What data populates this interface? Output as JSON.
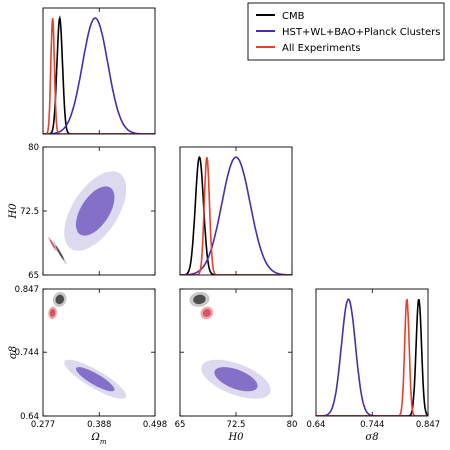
{
  "chart_data": {
    "type": "corner-triangle",
    "parameters": [
      {
        "key": "om",
        "label": "Ω_m",
        "range": [
          0.277,
          0.498
        ],
        "ticks": [
          "0.277",
          "0.388",
          "0.498"
        ]
      },
      {
        "key": "h0",
        "label": "H0",
        "range": [
          65,
          80
        ],
        "ticks": [
          "65",
          "72.5",
          "80"
        ]
      },
      {
        "key": "s8",
        "label": "σ8",
        "range": [
          0.64,
          0.847
        ],
        "ticks": [
          "0.64",
          "0.744",
          "0.847"
        ]
      }
    ],
    "axis_labels": {
      "om": {
        "base": "Ω",
        "sub": "m"
      },
      "h0": {
        "base": "H0"
      },
      "s8": {
        "base": "σ8"
      }
    },
    "legend": {
      "placement": "top-right",
      "entries": [
        "CMB",
        "HST+WL+BAO+Planck Clusters",
        "All Experiments"
      ]
    },
    "series": [
      {
        "name": "CMB",
        "color": "#000000",
        "mean": {
          "om": 0.31,
          "h0": 67.6,
          "s8": 0.83
        },
        "sd": {
          "om": 0.0055,
          "h0": 0.55,
          "s8": 0.005
        },
        "contour_inner": "#4d4d4d",
        "contour_outer": "#c8c8c8"
      },
      {
        "name": "HST+WL+BAO+Planck Clusters",
        "color": "#4a2bb3",
        "mean": {
          "om": 0.38,
          "h0": 72.5,
          "s8": 0.7
        },
        "sd": {
          "om": 0.025,
          "h0": 1.9,
          "s8": 0.013
        },
        "contour_inner": "#8470c8",
        "contour_outer": "#dddaf0"
      },
      {
        "name": "All Experiments",
        "color": "#e8402b",
        "mean": {
          "om": 0.296,
          "h0": 68.6,
          "s8": 0.808
        },
        "sd": {
          "om": 0.0035,
          "h0": 0.35,
          "s8": 0.0042
        },
        "contour_inner": "#d35560",
        "contour_outer": "#f0a8ae"
      }
    ],
    "grid": false
  }
}
